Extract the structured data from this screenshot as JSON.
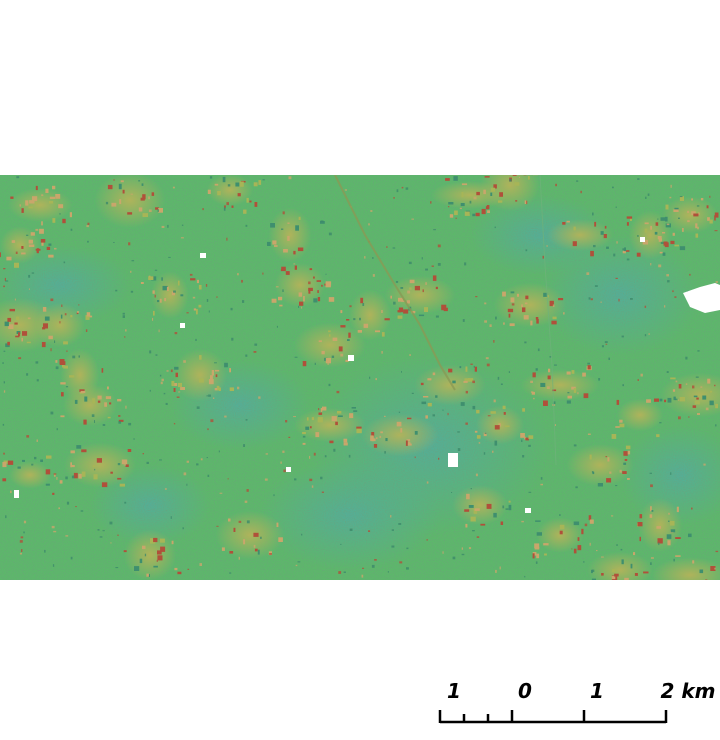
{
  "map": {
    "colors": {
      "background": "#ffffff",
      "base_green": "#5cb86a",
      "teal_low": "#4fae9a",
      "yellow_green": "#a7b557",
      "tan": "#c9a66b",
      "red_brown": "#b0503a",
      "nodata": "#ffffff"
    }
  },
  "scalebar": {
    "labels": [
      "1",
      "0",
      "1",
      "2 km"
    ],
    "values": [
      -1,
      0,
      1,
      2
    ],
    "unit": "km"
  }
}
